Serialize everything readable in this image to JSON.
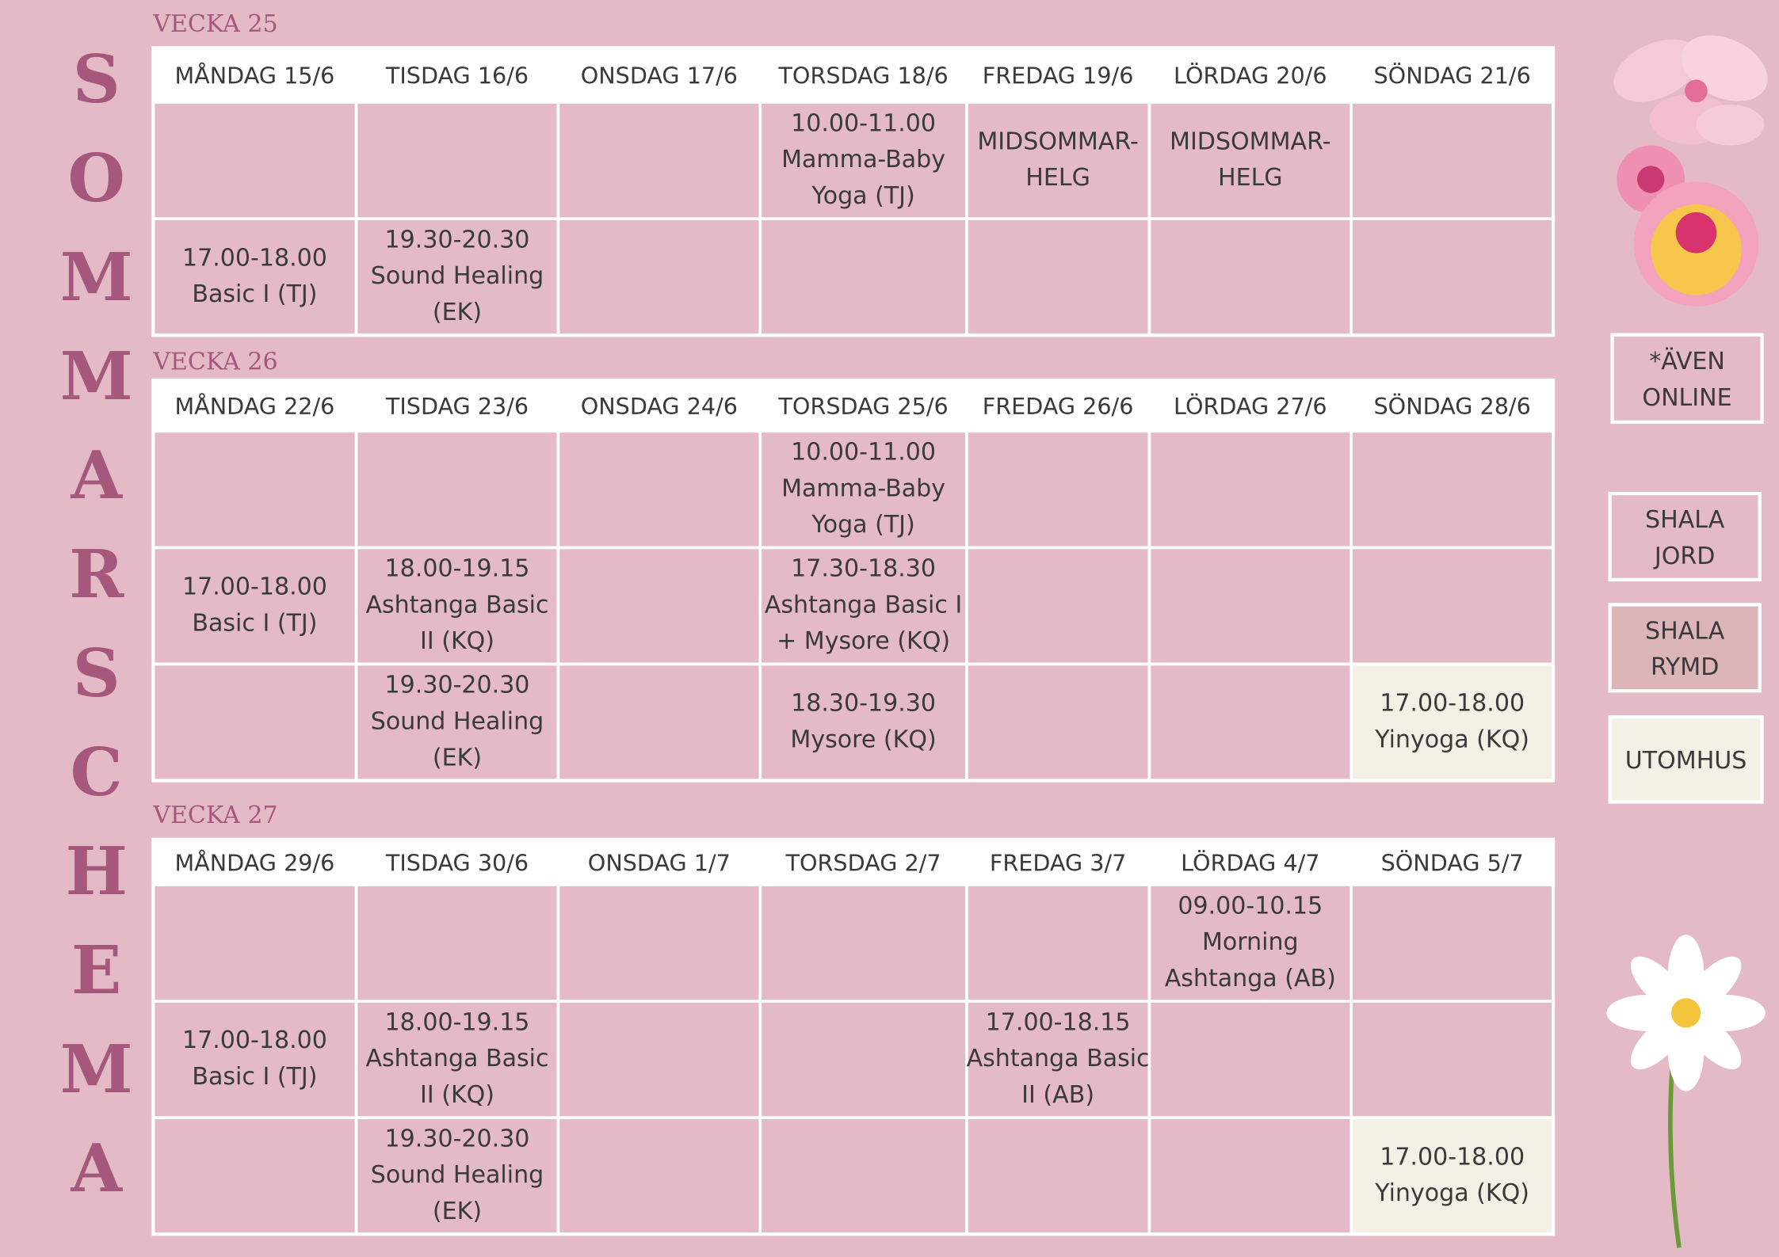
{
  "title_letters": [
    "S",
    "O",
    "M",
    "M",
    "A",
    "R",
    "S",
    "C",
    "H",
    "E",
    "M",
    "A"
  ],
  "weeks": [
    {
      "label": "VECKA 25",
      "days": [
        {
          "label": "MÅNDAG 15/6"
        },
        {
          "label": "TISDAG 16/6"
        },
        {
          "label": "ONSDAG 17/6"
        },
        {
          "label": "TORSDAG 18/6"
        },
        {
          "label": "FREDAG 19/6",
          "color": "#e8414f"
        },
        {
          "label": "LÖRDAG 20/6",
          "color": "#e8414f"
        },
        {
          "label": "SÖNDAG 21/6"
        }
      ],
      "rows": [
        [
          {
            "lines": []
          },
          {
            "lines": []
          },
          {
            "lines": []
          },
          {
            "lines": [
              "10.00-11.00",
              "Mamma-Baby",
              "Yoga (TJ)"
            ]
          },
          {
            "lines": [
              "MIDSOMMAR-",
              "HELG"
            ],
            "color": "#e8414f"
          },
          {
            "lines": [
              "MIDSOMMAR-",
              "HELG"
            ],
            "color": "#e8414f"
          },
          {
            "lines": []
          }
        ],
        [
          {
            "lines": [
              "17.00-18.00",
              "Basic I (TJ)"
            ]
          },
          {
            "lines": [
              "19.30-20.30",
              "Sound Healing",
              "(EK)"
            ]
          },
          {
            "lines": []
          },
          {
            "lines": []
          },
          {
            "lines": []
          },
          {
            "lines": []
          },
          {
            "lines": []
          }
        ]
      ]
    },
    {
      "label": "VECKA 26",
      "days": [
        {
          "label": "MÅNDAG 22/6"
        },
        {
          "label": "TISDAG 23/6"
        },
        {
          "label": "ONSDAG 24/6"
        },
        {
          "label": "TORSDAG 25/6"
        },
        {
          "label": "FREDAG 26/6"
        },
        {
          "label": "LÖRDAG 27/6"
        },
        {
          "label": "SÖNDAG 28/6"
        }
      ],
      "rows": [
        [
          {
            "lines": []
          },
          {
            "lines": []
          },
          {
            "lines": []
          },
          {
            "lines": [
              "10.00-11.00",
              "Mamma-Baby",
              "Yoga (TJ)"
            ]
          },
          {
            "lines": []
          },
          {
            "lines": []
          },
          {
            "lines": []
          }
        ],
        [
          {
            "lines": [
              "17.00-18.00",
              "Basic I (TJ)"
            ]
          },
          {
            "lines": [
              "18.00-19.15",
              "Ashtanga Basic",
              "II (KQ)"
            ]
          },
          {
            "lines": []
          },
          {
            "lines": [
              "17.30-18.30",
              "Ashtanga Basic I",
              "+ Mysore (KQ)"
            ]
          },
          {
            "lines": []
          },
          {
            "lines": []
          },
          {
            "lines": []
          }
        ],
        [
          {
            "lines": []
          },
          {
            "lines": [
              "19.30-20.30",
              "Sound Healing",
              "(EK)"
            ]
          },
          {
            "lines": []
          },
          {
            "lines": [
              "18.30-19.30",
              "Mysore (KQ)"
            ]
          },
          {
            "lines": []
          },
          {
            "lines": []
          },
          {
            "lines": [
              "17.00-18.00",
              "Yinyoga (KQ)"
            ],
            "background": "#f3f1e6"
          }
        ]
      ]
    },
    {
      "label": "VECKA 27",
      "days": [
        {
          "label": "MÅNDAG 29/6"
        },
        {
          "label": "TISDAG 30/6"
        },
        {
          "label": "ONSDAG 1/7"
        },
        {
          "label": "TORSDAG 2/7"
        },
        {
          "label": "FREDAG 3/7"
        },
        {
          "label": "LÖRDAG 4/7"
        },
        {
          "label": "SÖNDAG 5/7"
        }
      ],
      "rows": [
        [
          {
            "lines": []
          },
          {
            "lines": []
          },
          {
            "lines": []
          },
          {
            "lines": []
          },
          {
            "lines": []
          },
          {
            "lines": [
              "09.00-10.15",
              "Morning",
              "Ashtanga (AB)"
            ]
          },
          {
            "lines": []
          }
        ],
        [
          {
            "lines": [
              "17.00-18.00",
              "Basic I (TJ)"
            ]
          },
          {
            "lines": [
              "18.00-19.15",
              "Ashtanga Basic",
              "II (KQ)"
            ]
          },
          {
            "lines": []
          },
          {
            "lines": []
          },
          {
            "lines": [
              "17.00-18.15",
              "Ashtanga Basic",
              "II (AB)"
            ]
          },
          {
            "lines": []
          },
          {
            "lines": []
          }
        ],
        [
          {
            "lines": []
          },
          {
            "lines": [
              "19.30-20.30",
              "Sound Healing",
              "(EK)"
            ]
          },
          {
            "lines": []
          },
          {
            "lines": []
          },
          {
            "lines": []
          },
          {
            "lines": []
          },
          {
            "lines": [
              "17.00-18.00",
              "Yinyoga (KQ)"
            ],
            "background": "#f3f1e6"
          }
        ]
      ]
    }
  ],
  "legend": [
    {
      "lines": [
        "*ÄVEN",
        "ONLINE"
      ]
    },
    {
      "lines": [
        "SHALA",
        "JORD"
      ]
    },
    {
      "lines": [
        "SHALA",
        "RYMD"
      ],
      "background": "#dbb5b8"
    },
    {
      "lines": [
        "UTOMHUS"
      ],
      "background": "#f3f1e6"
    }
  ]
}
